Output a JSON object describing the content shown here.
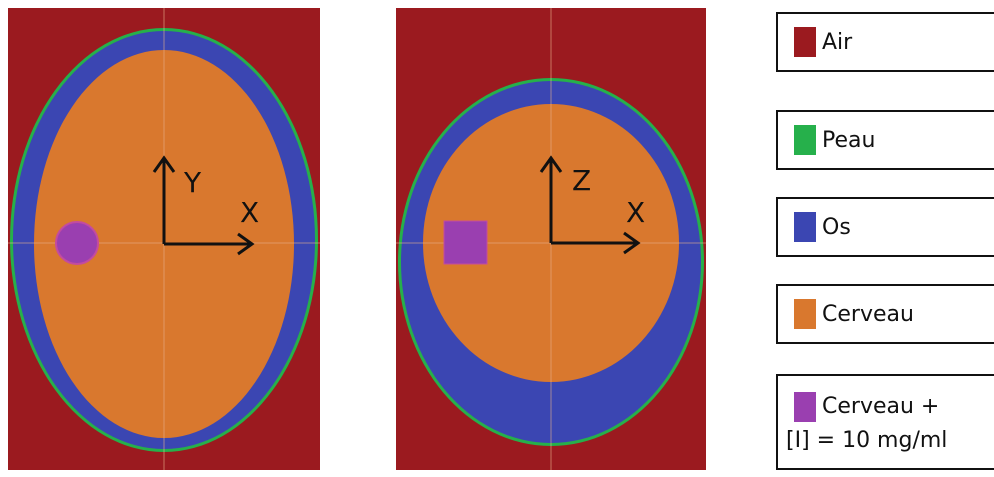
{
  "colors": {
    "air": "#9b1a1f",
    "skin": "#26b04b",
    "bone": "#3b46b2",
    "brain": "#d9782e",
    "iodine": "#9a3fb0"
  },
  "panels": [
    {
      "name": "axial",
      "axes": [
        "Y",
        "X"
      ]
    },
    {
      "name": "coronal",
      "axes": [
        "Z",
        "X"
      ]
    }
  ],
  "legend": [
    {
      "key": "air",
      "label": "Air"
    },
    {
      "key": "skin",
      "label": "Peau"
    },
    {
      "key": "bone",
      "label": "Os"
    },
    {
      "key": "brain",
      "label": "Cerveau"
    },
    {
      "key": "iodine",
      "label": "Cerveau +",
      "label2": "[I] = 10 mg/ml"
    }
  ]
}
